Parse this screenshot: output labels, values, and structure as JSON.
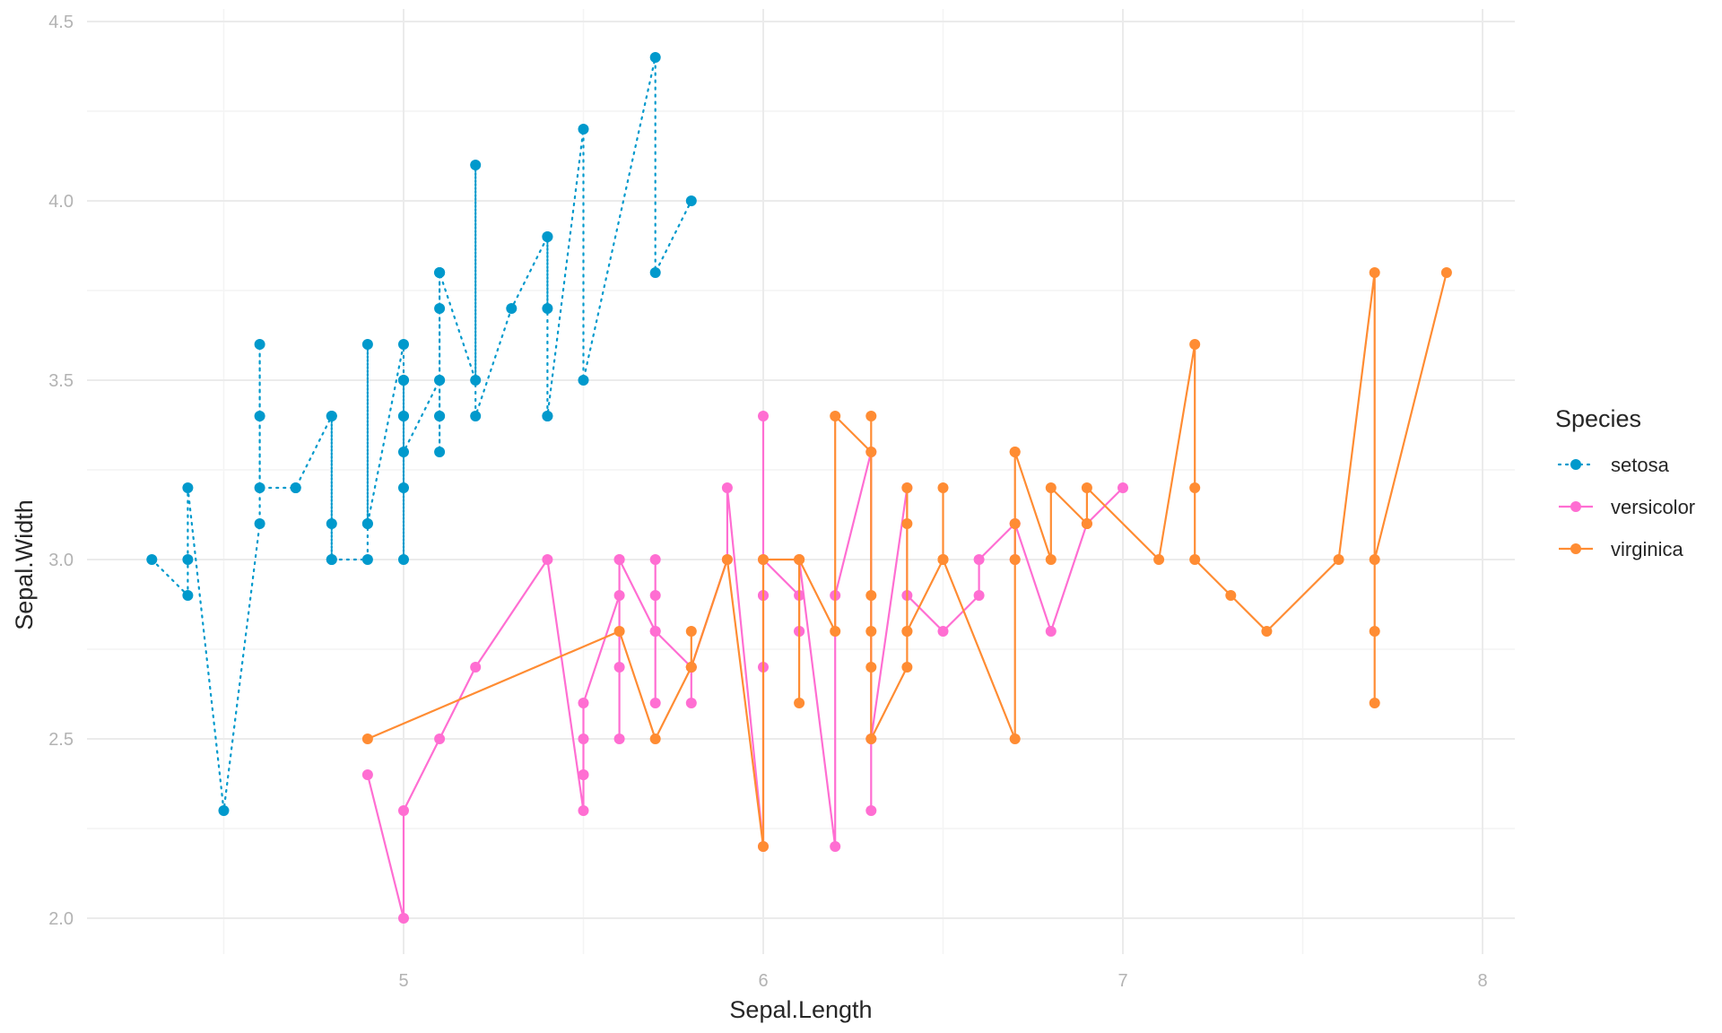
{
  "chart_data": {
    "type": "line",
    "title": "",
    "xlabel": "Sepal.Length",
    "ylabel": "Sepal.Width",
    "xlim": [
      4.2,
      8.1
    ],
    "ylim": [
      1.88,
      4.5
    ],
    "x_ticks": [
      5,
      6,
      7,
      8
    ],
    "x_tick_labels": [
      "5",
      "6",
      "7",
      "8"
    ],
    "y_ticks": [
      2.0,
      2.5,
      3.0,
      3.5,
      4.0,
      4.5
    ],
    "y_tick_labels": [
      "2.0",
      "2.5",
      "3.0",
      "3.5",
      "4.0",
      "4.5"
    ],
    "grid": true,
    "legend": {
      "title": "Species",
      "position": "right"
    },
    "series": [
      {
        "name": "setosa",
        "color": "#0099cc",
        "linestyle": "dotted",
        "x": [
          4.3,
          4.4,
          4.4,
          4.4,
          4.5,
          4.6,
          4.6,
          4.6,
          4.6,
          4.7,
          4.7,
          4.8,
          4.8,
          4.8,
          4.8,
          4.8,
          4.9,
          4.9,
          4.9,
          4.9,
          5.0,
          5.0,
          5.0,
          5.0,
          5.0,
          5.0,
          5.0,
          5.0,
          5.1,
          5.1,
          5.1,
          5.1,
          5.1,
          5.1,
          5.1,
          5.1,
          5.1,
          5.2,
          5.2,
          5.2,
          5.3,
          5.4,
          5.4,
          5.4,
          5.4,
          5.4,
          5.5,
          5.5,
          5.7,
          5.7,
          5.8
        ],
        "y": [
          3.0,
          2.9,
          3.0,
          3.2,
          2.3,
          3.1,
          3.4,
          3.6,
          3.2,
          3.2,
          3.2,
          3.4,
          3.0,
          3.4,
          3.1,
          3.0,
          3.0,
          3.1,
          3.6,
          3.1,
          3.6,
          3.4,
          3.0,
          3.4,
          3.5,
          3.2,
          3.5,
          3.3,
          3.5,
          3.5,
          3.8,
          3.8,
          3.4,
          3.7,
          3.3,
          3.4,
          3.8,
          3.5,
          4.1,
          3.4,
          3.7,
          3.9,
          3.7,
          3.9,
          3.4,
          3.4,
          4.2,
          3.5,
          4.4,
          3.8,
          4.0
        ]
      },
      {
        "name": "versicolor",
        "color": "#ff6ed2",
        "linestyle": "solid",
        "x": [
          4.9,
          5.0,
          5.0,
          5.1,
          5.2,
          5.4,
          5.5,
          5.5,
          5.5,
          5.5,
          5.5,
          5.6,
          5.6,
          5.6,
          5.6,
          5.6,
          5.7,
          5.7,
          5.7,
          5.7,
          5.7,
          5.8,
          5.8,
          5.8,
          5.9,
          5.9,
          6.0,
          6.0,
          6.0,
          6.0,
          6.0,
          6.0,
          6.1,
          6.1,
          6.1,
          6.1,
          6.2,
          6.2,
          6.3,
          6.3,
          6.3,
          6.4,
          6.4,
          6.5,
          6.6,
          6.6,
          6.7,
          6.7,
          6.7,
          6.8,
          6.9,
          7.0
        ],
        "y": [
          2.4,
          2.0,
          2.3,
          2.5,
          2.7,
          3.0,
          2.3,
          2.4,
          2.4,
          2.5,
          2.6,
          2.9,
          3.0,
          2.5,
          2.7,
          3.0,
          2.8,
          2.6,
          3.0,
          2.9,
          2.8,
          2.7,
          2.6,
          2.7,
          3.0,
          3.2,
          2.2,
          2.9,
          3.4,
          2.7,
          2.9,
          3.0,
          2.9,
          2.8,
          2.8,
          3.0,
          2.2,
          2.9,
          3.3,
          2.3,
          2.5,
          3.2,
          2.9,
          2.8,
          2.9,
          3.0,
          3.1,
          3.0,
          3.1,
          2.8,
          3.1,
          3.2
        ]
      },
      {
        "name": "virginica",
        "color": "#ff8c33",
        "linestyle": "solid",
        "x": [
          4.9,
          5.6,
          5.7,
          5.8,
          5.8,
          5.8,
          5.9,
          6.0,
          6.0,
          6.1,
          6.1,
          6.1,
          6.2,
          6.2,
          6.3,
          6.3,
          6.3,
          6.3,
          6.3,
          6.3,
          6.4,
          6.4,
          6.4,
          6.4,
          6.4,
          6.5,
          6.5,
          6.5,
          6.5,
          6.7,
          6.7,
          6.7,
          6.7,
          6.7,
          6.8,
          6.8,
          6.9,
          6.9,
          6.9,
          7.1,
          7.2,
          7.2,
          7.2,
          7.3,
          7.4,
          7.6,
          7.7,
          7.7,
          7.7,
          7.7,
          7.9
        ],
        "y": [
          2.5,
          2.8,
          2.5,
          2.7,
          2.8,
          2.7,
          3.0,
          2.2,
          3.0,
          3.0,
          2.6,
          3.0,
          2.8,
          3.4,
          3.3,
          2.9,
          2.7,
          2.8,
          3.4,
          2.5,
          2.7,
          3.2,
          2.8,
          3.1,
          2.8,
          3.0,
          3.0,
          3.2,
          3.0,
          2.5,
          3.3,
          3.0,
          3.1,
          3.3,
          3.0,
          3.2,
          3.1,
          3.1,
          3.2,
          3.0,
          3.6,
          3.2,
          3.0,
          2.9,
          2.8,
          3.0,
          3.8,
          2.6,
          2.8,
          3.0,
          3.8
        ]
      }
    ]
  }
}
